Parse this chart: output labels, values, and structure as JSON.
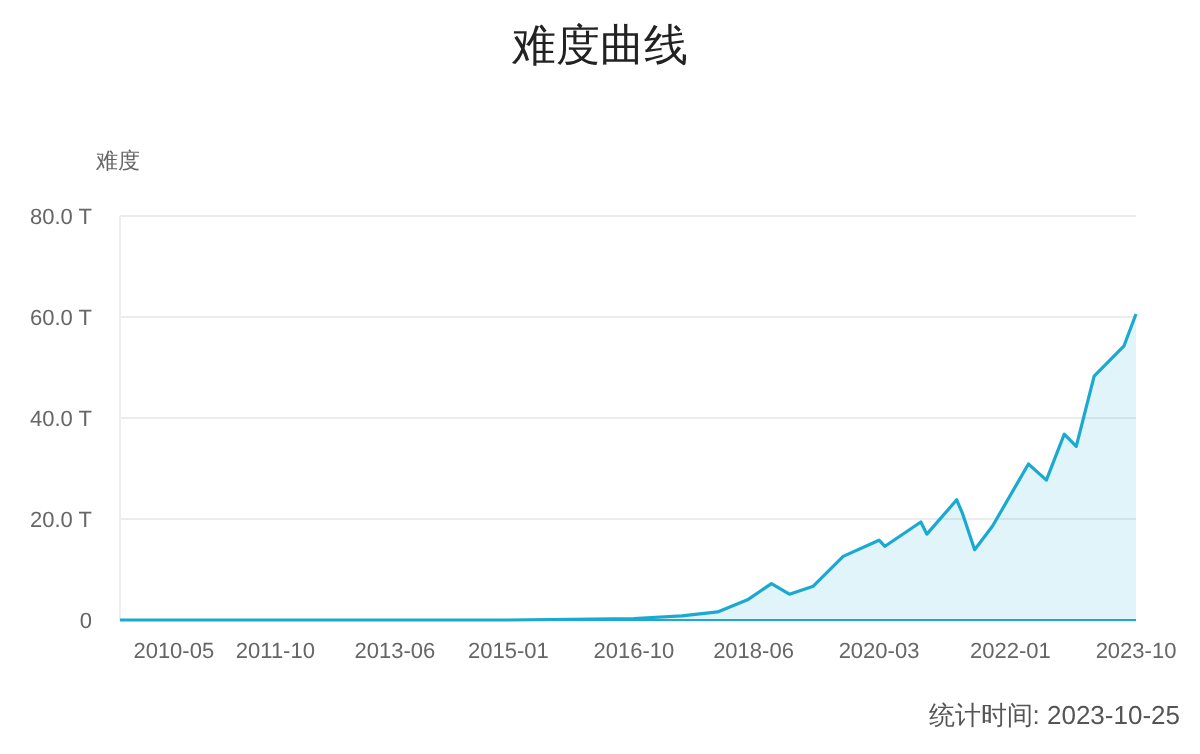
{
  "chart_data": {
    "type": "area",
    "title": "难度曲线",
    "ylabel": "难度",
    "annotations": [
      "统计时间: 2023-10-25"
    ],
    "x": [
      "2009-08",
      "2011-01",
      "2013-01",
      "2015-01",
      "2016-10",
      "2017-06",
      "2017-12",
      "2018-05",
      "2018-09",
      "2018-12",
      "2019-04",
      "2019-09",
      "2020-03",
      "2020-04",
      "2020-10",
      "2020-11",
      "2021-04",
      "2021-05",
      "2021-07",
      "2021-10",
      "2022-04",
      "2022-07",
      "2022-10",
      "2022-12",
      "2023-03",
      "2023-08",
      "2023-10"
    ],
    "series": [
      {
        "color": "#1aa9d0",
        "values": [
          0,
          0,
          0,
          0,
          0.3,
          0.8,
          1.6,
          4,
          7.2,
          5.1,
          6.7,
          12.6,
          15.8,
          14.6,
          19.4,
          17,
          23.8,
          21,
          13.9,
          18.6,
          30.9,
          27.7,
          36.8,
          34.4,
          48.3,
          54.3,
          60.6
        ]
      }
    ],
    "xlim": [
      "2009-08",
      "2023-10"
    ],
    "xticks": [
      "2010-05",
      "2011-10",
      "2013-06",
      "2015-01",
      "2016-10",
      "2018-06",
      "2020-03",
      "2022-01",
      "2023-10"
    ],
    "ylim": [
      0,
      80
    ],
    "yticks": [
      0,
      {
        "value": 20,
        "label": "20.0 T"
      },
      {
        "value": 40,
        "label": "40.0 T"
      },
      {
        "value": 60,
        "label": "60.0 T"
      },
      {
        "value": 80,
        "label": "80.0 T"
      }
    ],
    "grid": "y"
  }
}
